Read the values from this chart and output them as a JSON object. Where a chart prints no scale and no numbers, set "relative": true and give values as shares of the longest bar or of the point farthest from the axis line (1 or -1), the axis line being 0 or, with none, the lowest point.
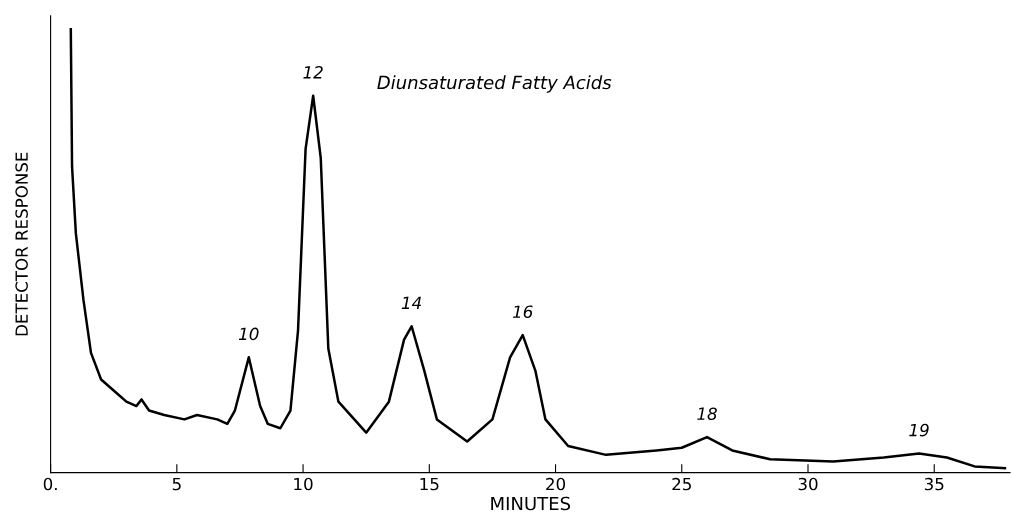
{
  "chart_data": {
    "type": "line",
    "title": "Diunsaturated Fatty Acids",
    "xlabel": "MINUTES",
    "ylabel": "DETECTOR RESPONSE",
    "relative": true,
    "tick_labels": "x",
    "grid": false,
    "legend": false,
    "marker": "none",
    "line_style": "solid",
    "xlim": [
      0,
      38
    ],
    "xticks": [
      {
        "value": 0,
        "label": "0."
      },
      5,
      10,
      15,
      20,
      25,
      30,
      35
    ],
    "series": [
      {
        "color": "#000000",
        "x": [
          0.8,
          0.85,
          1.0,
          1.3,
          1.6,
          2.0,
          2.6,
          3.0,
          3.4,
          3.6,
          3.9,
          4.5,
          5.3,
          5.8,
          6.6,
          7.0,
          7.3,
          7.85,
          8.3,
          8.6,
          9.1,
          9.5,
          9.8,
          10.1,
          10.4,
          10.7,
          11.0,
          11.4,
          12.5,
          13.4,
          14.0,
          14.3,
          14.8,
          15.3,
          16.5,
          17.5,
          18.2,
          18.7,
          19.2,
          19.6,
          20.5,
          22,
          24,
          25,
          26,
          27,
          28.5,
          31,
          33,
          34.4,
          35.5,
          36.6,
          37.8
        ],
        "values": [
          1.0,
          0.69,
          0.54,
          0.39,
          0.27,
          0.21,
          0.18,
          0.16,
          0.15,
          0.165,
          0.14,
          0.13,
          0.12,
          0.13,
          0.12,
          0.11,
          0.14,
          0.26,
          0.15,
          0.11,
          0.1,
          0.14,
          0.32,
          0.73,
          0.85,
          0.71,
          0.28,
          0.16,
          0.09,
          0.16,
          0.3,
          0.33,
          0.23,
          0.12,
          0.07,
          0.12,
          0.26,
          0.31,
          0.23,
          0.12,
          0.06,
          0.04,
          0.05,
          0.056,
          0.08,
          0.05,
          0.03,
          0.025,
          0.034,
          0.043,
          0.034,
          0.014,
          0.01
        ]
      }
    ],
    "annotations": [
      {
        "text": "10",
        "x": 7.85,
        "y": 0.26
      },
      {
        "text": "12",
        "x": 10.4,
        "y": 0.85
      },
      {
        "text": "14",
        "x": 14.3,
        "y": 0.33
      },
      {
        "text": "16",
        "x": 18.7,
        "y": 0.31
      },
      {
        "text": "18",
        "x": 26,
        "y": 0.08
      },
      {
        "text": "19",
        "x": 34.4,
        "y": 0.043
      }
    ]
  }
}
